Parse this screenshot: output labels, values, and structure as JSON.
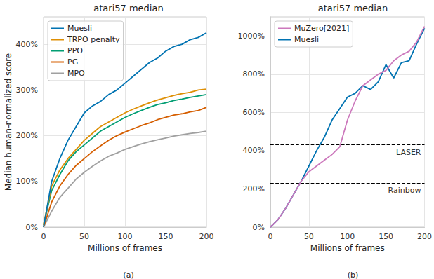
{
  "chart_data": [
    {
      "type": "line",
      "title": "atari57 median",
      "x_label": "Millions of frames",
      "y_label": "Median human-normalized score",
      "caption": "(a)",
      "x": [
        0,
        10,
        20,
        30,
        40,
        50,
        60,
        70,
        80,
        90,
        100,
        110,
        120,
        130,
        140,
        150,
        160,
        170,
        180,
        190,
        200
      ],
      "xlim": [
        0,
        200
      ],
      "xticks": [
        0,
        50,
        100,
        150,
        200
      ],
      "ylim": [
        0,
        460
      ],
      "yticks": [
        {
          "value": 0,
          "label": "0%"
        },
        {
          "value": 100,
          "label": "100%"
        },
        {
          "value": 200,
          "label": "200%"
        },
        {
          "value": 300,
          "label": "300%"
        },
        {
          "value": 400,
          "label": "400%"
        }
      ],
      "grid": true,
      "legend": "upper left",
      "series": [
        {
          "name": "Muesli",
          "color": "#0173b2",
          "values": [
            0,
            100,
            150,
            190,
            220,
            250,
            265,
            275,
            290,
            300,
            315,
            330,
            345,
            360,
            370,
            385,
            395,
            400,
            410,
            415,
            425
          ]
        },
        {
          "name": "TRPO penalty",
          "color": "#de8f05",
          "values": [
            5,
            90,
            125,
            150,
            170,
            190,
            205,
            220,
            230,
            240,
            250,
            258,
            265,
            272,
            278,
            283,
            288,
            292,
            295,
            300,
            302
          ]
        },
        {
          "name": "PPO",
          "color": "#029e73",
          "values": [
            5,
            80,
            115,
            145,
            165,
            180,
            195,
            210,
            220,
            230,
            240,
            248,
            255,
            262,
            268,
            272,
            277,
            280,
            284,
            287,
            290
          ]
        },
        {
          "name": "PG",
          "color": "#d55e00",
          "values": [
            0,
            55,
            90,
            115,
            135,
            150,
            165,
            178,
            190,
            200,
            208,
            215,
            222,
            228,
            235,
            240,
            245,
            248,
            252,
            255,
            262
          ]
        },
        {
          "name": "MPO",
          "color": "#a0a0a0",
          "values": [
            0,
            35,
            65,
            85,
            105,
            120,
            133,
            145,
            155,
            162,
            170,
            176,
            182,
            187,
            191,
            195,
            199,
            202,
            205,
            207,
            210
          ]
        }
      ]
    },
    {
      "type": "line",
      "title": "atari57 median",
      "x_label": "Millions of frames",
      "caption": "(b)",
      "x": [
        0,
        10,
        20,
        30,
        40,
        50,
        60,
        70,
        80,
        90,
        100,
        110,
        120,
        130,
        140,
        150,
        160,
        170,
        180,
        190,
        200
      ],
      "xlim": [
        0,
        200
      ],
      "xticks": [
        0,
        50,
        100,
        150,
        200
      ],
      "ylim": [
        0,
        1100
      ],
      "yticks": [
        {
          "value": 0,
          "label": "0%"
        },
        {
          "value": 200,
          "label": "200%"
        },
        {
          "value": 400,
          "label": "400%"
        },
        {
          "value": 600,
          "label": "600%"
        },
        {
          "value": 800,
          "label": "800%"
        },
        {
          "value": 1000,
          "label": "1000%"
        }
      ],
      "grid": true,
      "legend": "upper left",
      "reference_lines": [
        {
          "label": "LASER",
          "value": 430,
          "color": "#000000",
          "line_style": "dashed"
        },
        {
          "label": "Rainbow",
          "value": 230,
          "color": "#000000",
          "line_style": "dashed"
        }
      ],
      "series": [
        {
          "name": "MuZero[2021]",
          "color": "#cc78bc",
          "values": [
            0,
            40,
            100,
            170,
            240,
            290,
            320,
            350,
            380,
            420,
            560,
            660,
            740,
            770,
            800,
            820,
            870,
            900,
            920,
            970,
            1050
          ]
        },
        {
          "name": "Muesli",
          "color": "#0173b2",
          "values": [
            0,
            40,
            100,
            170,
            240,
            320,
            400,
            470,
            560,
            620,
            680,
            700,
            740,
            720,
            760,
            850,
            780,
            860,
            870,
            960,
            1040
          ]
        }
      ]
    }
  ]
}
